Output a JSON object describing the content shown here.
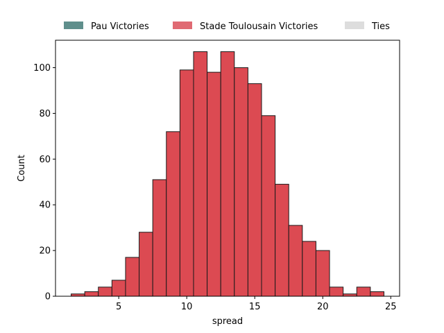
{
  "chart_data": {
    "type": "bar",
    "title": "",
    "xlabel": "spread",
    "ylabel": "Count",
    "xlim": [
      0.35,
      25.65
    ],
    "ylim": [
      0,
      112
    ],
    "xticks": [
      5,
      10,
      15,
      20,
      25
    ],
    "yticks": [
      0,
      20,
      40,
      60,
      80,
      100
    ],
    "grid": false,
    "legend_position": "top",
    "colors": {
      "pau": "#5f8f8c",
      "stade": "#e06a73",
      "ties": "#dddddd",
      "bars": "#dc4a52",
      "edge": "#1a1a1a"
    },
    "legend": [
      {
        "label": "Pau Victories",
        "color_key": "pau"
      },
      {
        "label": "Stade Toulousain Victories",
        "color_key": "stade"
      },
      {
        "label": "Ties",
        "color_key": "ties"
      }
    ],
    "series": [
      {
        "name": "Stade Toulousain Victories",
        "bins": [
          {
            "x0": 1.5,
            "x1": 2.5,
            "count": 1
          },
          {
            "x0": 2.5,
            "x1": 3.5,
            "count": 2
          },
          {
            "x0": 3.5,
            "x1": 4.5,
            "count": 4
          },
          {
            "x0": 4.5,
            "x1": 5.5,
            "count": 7
          },
          {
            "x0": 5.5,
            "x1": 6.5,
            "count": 17
          },
          {
            "x0": 6.5,
            "x1": 7.5,
            "count": 28
          },
          {
            "x0": 7.5,
            "x1": 8.5,
            "count": 51
          },
          {
            "x0": 8.5,
            "x1": 9.5,
            "count": 72
          },
          {
            "x0": 9.5,
            "x1": 10.5,
            "count": 99
          },
          {
            "x0": 10.5,
            "x1": 11.5,
            "count": 107
          },
          {
            "x0": 11.5,
            "x1": 12.5,
            "count": 98
          },
          {
            "x0": 12.5,
            "x1": 13.5,
            "count": 107
          },
          {
            "x0": 13.5,
            "x1": 14.5,
            "count": 100
          },
          {
            "x0": 14.5,
            "x1": 15.5,
            "count": 93
          },
          {
            "x0": 15.5,
            "x1": 16.5,
            "count": 79
          },
          {
            "x0": 16.5,
            "x1": 17.5,
            "count": 49
          },
          {
            "x0": 17.5,
            "x1": 18.5,
            "count": 31
          },
          {
            "x0": 18.5,
            "x1": 19.5,
            "count": 24
          },
          {
            "x0": 19.5,
            "x1": 20.5,
            "count": 20
          },
          {
            "x0": 20.5,
            "x1": 21.5,
            "count": 4
          },
          {
            "x0": 21.5,
            "x1": 22.5,
            "count": 1
          },
          {
            "x0": 22.5,
            "x1": 23.5,
            "count": 4
          },
          {
            "x0": 23.5,
            "x1": 24.5,
            "count": 2
          }
        ]
      }
    ]
  }
}
